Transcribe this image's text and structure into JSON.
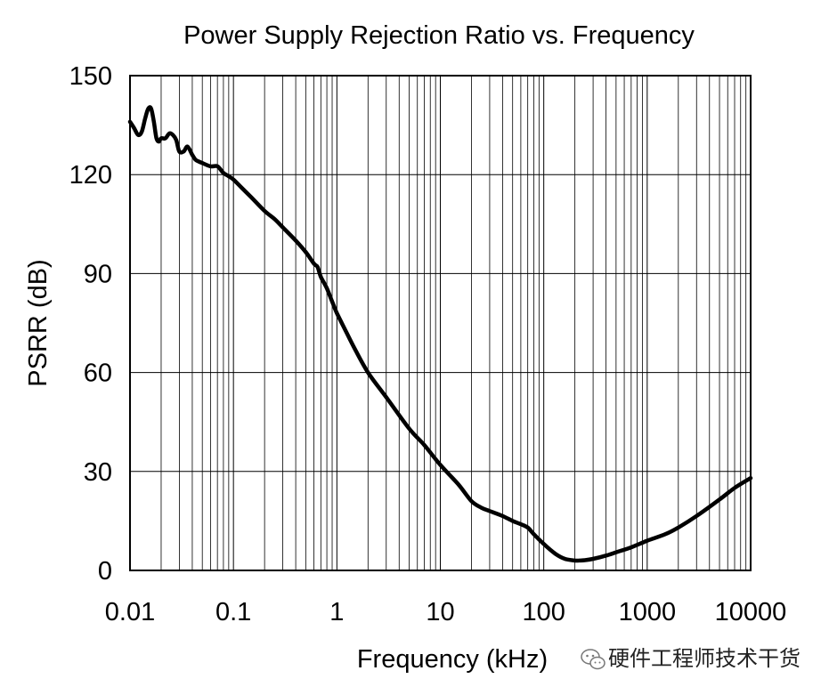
{
  "chart_data": {
    "type": "line",
    "title": "Power Supply Rejection Ratio vs. Frequency",
    "xlabel": "Frequency (kHz)",
    "ylabel": "PSRR (dB)",
    "xscale": "log",
    "xlim": [
      0.01,
      10000
    ],
    "ylim": [
      0,
      150
    ],
    "x_ticks": [
      0.01,
      0.1,
      1,
      10,
      100,
      1000,
      10000
    ],
    "x_tick_labels": [
      "0.01",
      "0.1",
      "1",
      "10",
      "100",
      "1000",
      "10000"
    ],
    "y_ticks": [
      0,
      30,
      60,
      90,
      120,
      150
    ],
    "y_tick_labels": [
      "0",
      "30",
      "60",
      "90",
      "120",
      "150"
    ],
    "grid": true,
    "series": [
      {
        "x": [
          0.01,
          0.011,
          0.012,
          0.013,
          0.014,
          0.015,
          0.016,
          0.017,
          0.018,
          0.019,
          0.02,
          0.022,
          0.024,
          0.026,
          0.028,
          0.03,
          0.033,
          0.036,
          0.04,
          0.043,
          0.046,
          0.05,
          0.06,
          0.07,
          0.08,
          0.09,
          0.1,
          0.12,
          0.15,
          0.2,
          0.25,
          0.3,
          0.4,
          0.5,
          0.6,
          0.65,
          0.7,
          0.8,
          0.9,
          1,
          1.2,
          1.5,
          2,
          3,
          5,
          7,
          10,
          15,
          20,
          25,
          30,
          40,
          50,
          60,
          70,
          80,
          100,
          130,
          160,
          200,
          220,
          250,
          300,
          400,
          500,
          700,
          1000,
          1500,
          2000,
          3000,
          5000,
          7000,
          10000
        ],
        "y": [
          136,
          134,
          132,
          133,
          137,
          140,
          140,
          136,
          131,
          130,
          131,
          131,
          132.5,
          132,
          130.5,
          127,
          127,
          128.5,
          126,
          124.5,
          124,
          123.5,
          122.5,
          122.5,
          120.5,
          119.5,
          118.5,
          116,
          113,
          109,
          106.5,
          104,
          100,
          96.5,
          93,
          92,
          89,
          85.5,
          81.5,
          78,
          73,
          67,
          60,
          52.5,
          43,
          38,
          32,
          26,
          21,
          19,
          18,
          16.5,
          15,
          14,
          13,
          11,
          8,
          5,
          3.5,
          3,
          3,
          3.1,
          3.5,
          4.5,
          5.5,
          7,
          9,
          11,
          13,
          16.5,
          21.5,
          25,
          28
        ]
      }
    ]
  },
  "watermark": {
    "text": "硬件工程师技术干货",
    "icon": "wechat-icon"
  }
}
